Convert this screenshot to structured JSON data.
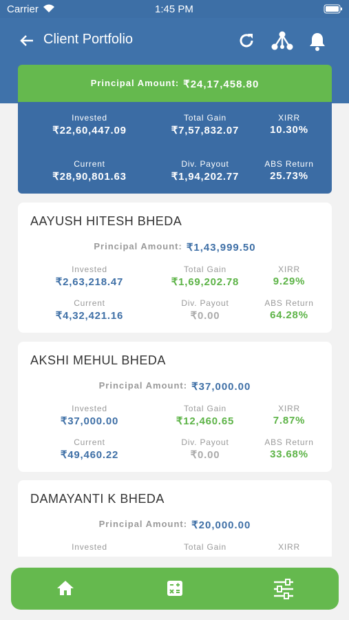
{
  "status_bar": {
    "carrier": "Carrier",
    "time": "1:45 PM"
  },
  "header": {
    "title": "Client Portfolio"
  },
  "summary": {
    "principal_label": "Principal Amount:",
    "principal_value": "₹24,17,458.80",
    "stats": [
      {
        "label": "Invested",
        "value": "₹22,60,447.09"
      },
      {
        "label": "Total Gain",
        "value": "₹7,57,832.07"
      },
      {
        "label": "XIRR",
        "value": "10.30%"
      },
      {
        "label": "Current",
        "value": "₹28,90,801.63"
      },
      {
        "label": "Div. Payout",
        "value": "₹1,94,202.77"
      },
      {
        "label": "ABS Return",
        "value": "25.73%"
      }
    ]
  },
  "clients": [
    {
      "name": "AAYUSH HITESH BHEDA",
      "principal_label": "Principal Amount:",
      "principal_value": "₹1,43,999.50",
      "stats": [
        {
          "label": "Invested",
          "value": "₹2,63,218.47"
        },
        {
          "label": "Total Gain",
          "value": "₹1,69,202.78"
        },
        {
          "label": "XIRR",
          "value": "9.29%"
        },
        {
          "label": "Current",
          "value": "₹4,32,421.16"
        },
        {
          "label": "Div. Payout",
          "value": "₹0.00"
        },
        {
          "label": "ABS Return",
          "value": "64.28%"
        }
      ]
    },
    {
      "name": "AKSHI MEHUL BHEDA",
      "principal_label": "Principal Amount:",
      "principal_value": "₹37,000.00",
      "stats": [
        {
          "label": "Invested",
          "value": "₹37,000.00"
        },
        {
          "label": "Total Gain",
          "value": "₹12,460.65"
        },
        {
          "label": "XIRR",
          "value": "7.87%"
        },
        {
          "label": "Current",
          "value": "₹49,460.22"
        },
        {
          "label": "Div. Payout",
          "value": "₹0.00"
        },
        {
          "label": "ABS Return",
          "value": "33.68%"
        }
      ]
    },
    {
      "name": "DAMAYANTI K BHEDA",
      "principal_label": "Principal Amount:",
      "principal_value": "₹20,000.00",
      "stats": [
        {
          "label": "Invested"
        },
        {
          "label": "Total Gain"
        },
        {
          "label": "XIRR"
        }
      ]
    }
  ]
}
